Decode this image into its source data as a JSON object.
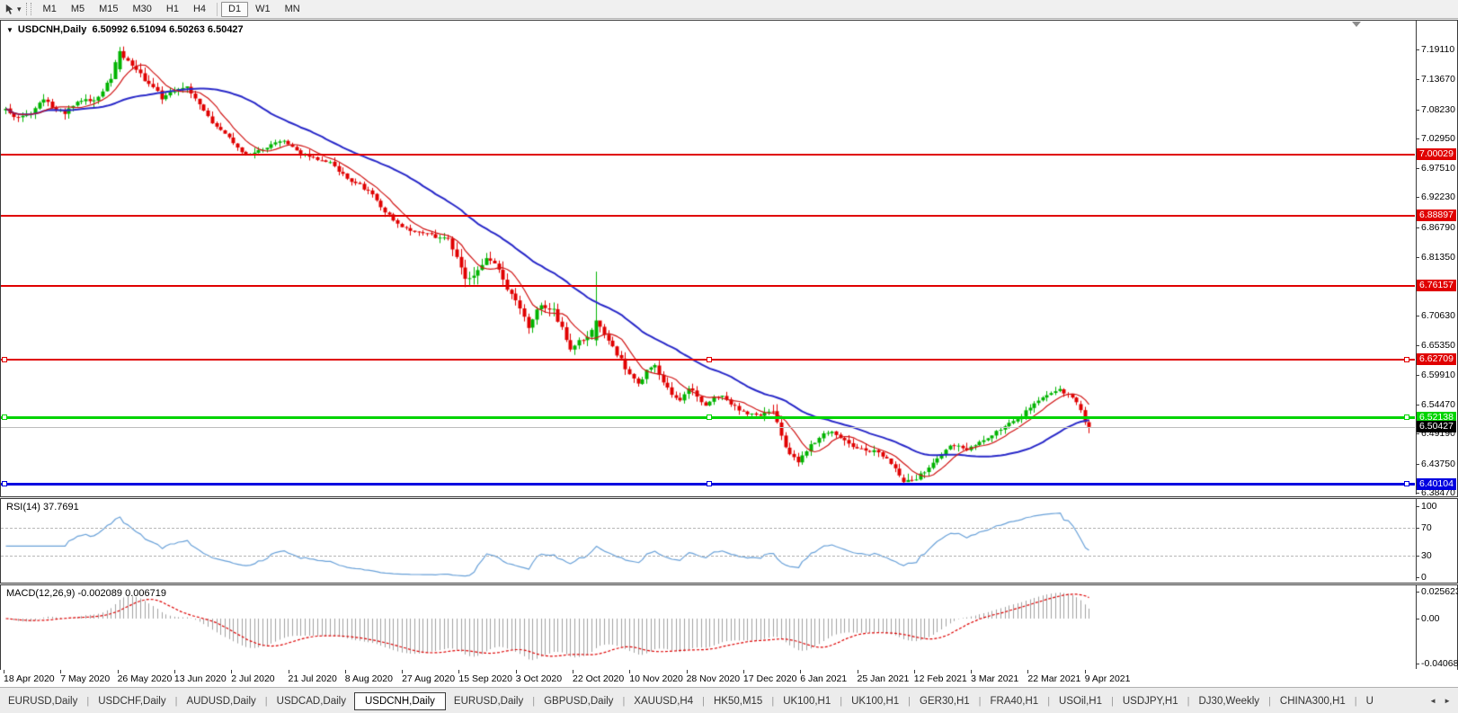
{
  "toolbar": {
    "timeframes": [
      "M1",
      "M5",
      "M15",
      "M30",
      "H1",
      "H4",
      "D1",
      "W1",
      "MN"
    ],
    "active_timeframe": "D1",
    "cursor_tool_icon": "pointer-cursor",
    "dropdown_icon": "chevron-down"
  },
  "chart": {
    "title_symbol": "USDCNH,Daily",
    "title_quotes": "6.50992 6.51094 6.50263 6.50427",
    "rsi_label": "RSI(14) 37.7691",
    "macd_label": "MACD(12,26,9) -0.002089 0.006719"
  },
  "chart_data": {
    "type": "candlestick",
    "symbol": "USDCNH",
    "timeframe": "Daily",
    "ohlc_current": {
      "open": 6.50992,
      "high": 6.51094,
      "low": 6.50263,
      "close": 6.50427
    },
    "bars": 258,
    "ylim": [
      6.3813,
      7.2434
    ],
    "price_axis_ticks": [
      "7.19110",
      "7.13670",
      "7.08230",
      "7.02950",
      "6.97510",
      "6.92230",
      "6.86790",
      "6.81350",
      "6.70630",
      "6.65350",
      "6.59910",
      "6.54470",
      "6.49190",
      "6.43750",
      "6.38470"
    ],
    "x_labels": [
      "18 Apr 2020",
      "7 May 2020",
      "26 May 2020",
      "13 Jun 2020",
      "2 Jul 2020",
      "21 Jul 2020",
      "8 Aug 2020",
      "27 Aug 2020",
      "15 Sep 2020",
      "3 Oct 2020",
      "22 Oct 2020",
      "10 Nov 2020",
      "28 Nov 2020",
      "17 Dec 2020",
      "6 Jan 2021",
      "25 Jan 2021",
      "12 Feb 2021",
      "3 Mar 2021",
      "22 Mar 2021",
      "9 Apr 2021"
    ],
    "close_waypoints": [
      [
        0,
        7.082
      ],
      [
        3,
        7.066
      ],
      [
        6,
        7.075
      ],
      [
        9,
        7.102
      ],
      [
        11,
        7.085
      ],
      [
        14,
        7.075
      ],
      [
        17,
        7.095
      ],
      [
        22,
        7.103
      ],
      [
        25,
        7.14
      ],
      [
        27,
        7.188
      ],
      [
        29,
        7.168
      ],
      [
        31,
        7.152
      ],
      [
        34,
        7.13
      ],
      [
        37,
        7.103
      ],
      [
        40,
        7.118
      ],
      [
        43,
        7.125
      ],
      [
        46,
        7.09
      ],
      [
        49,
        7.058
      ],
      [
        52,
        7.04
      ],
      [
        55,
        7.014
      ],
      [
        57,
        6.998
      ],
      [
        60,
        7.008
      ],
      [
        63,
        7.018
      ],
      [
        66,
        7.026
      ],
      [
        69,
        7.005
      ],
      [
        73,
        6.993
      ],
      [
        77,
        6.985
      ],
      [
        81,
        6.956
      ],
      [
        84,
        6.945
      ],
      [
        87,
        6.926
      ],
      [
        90,
        6.897
      ],
      [
        93,
        6.874
      ],
      [
        96,
        6.862
      ],
      [
        99,
        6.856
      ],
      [
        102,
        6.85
      ],
      [
        105,
        6.843
      ],
      [
        107,
        6.812
      ],
      [
        109,
        6.776
      ],
      [
        111,
        6.783
      ],
      [
        113,
        6.803
      ],
      [
        115,
        6.812
      ],
      [
        117,
        6.786
      ],
      [
        119,
        6.757
      ],
      [
        121,
        6.733
      ],
      [
        124,
        6.687
      ],
      [
        127,
        6.729
      ],
      [
        130,
        6.716
      ],
      [
        132,
        6.683
      ],
      [
        134,
        6.648
      ],
      [
        137,
        6.664
      ],
      [
        139,
        6.677
      ],
      [
        141,
        6.688
      ],
      [
        143,
        6.661
      ],
      [
        145,
        6.638
      ],
      [
        147,
        6.613
      ],
      [
        150,
        6.581
      ],
      [
        152,
        6.605
      ],
      [
        154,
        6.62
      ],
      [
        156,
        6.586
      ],
      [
        158,
        6.565
      ],
      [
        160,
        6.552
      ],
      [
        162,
        6.576
      ],
      [
        164,
        6.559
      ],
      [
        166,
        6.546
      ],
      [
        168,
        6.556
      ],
      [
        170,
        6.562
      ],
      [
        172,
        6.548
      ],
      [
        174,
        6.536
      ],
      [
        176,
        6.528
      ],
      [
        178,
        6.524
      ],
      [
        180,
        6.53
      ],
      [
        182,
        6.532
      ],
      [
        184,
        6.49
      ],
      [
        186,
        6.452
      ],
      [
        188,
        6.444
      ],
      [
        190,
        6.462
      ],
      [
        192,
        6.479
      ],
      [
        194,
        6.491
      ],
      [
        196,
        6.496
      ],
      [
        198,
        6.483
      ],
      [
        200,
        6.474
      ],
      [
        202,
        6.466
      ],
      [
        204,
        6.459
      ],
      [
        206,
        6.462
      ],
      [
        208,
        6.452
      ],
      [
        210,
        6.438
      ],
      [
        212,
        6.415
      ],
      [
        214,
        6.405
      ],
      [
        216,
        6.412
      ],
      [
        218,
        6.422
      ],
      [
        220,
        6.44
      ],
      [
        222,
        6.455
      ],
      [
        224,
        6.468
      ],
      [
        226,
        6.471
      ],
      [
        228,
        6.464
      ],
      [
        230,
        6.474
      ],
      [
        232,
        6.482
      ],
      [
        234,
        6.49
      ],
      [
        236,
        6.501
      ],
      [
        238,
        6.511
      ],
      [
        240,
        6.521
      ],
      [
        242,
        6.532
      ],
      [
        244,
        6.547
      ],
      [
        246,
        6.559
      ],
      [
        248,
        6.568
      ],
      [
        250,
        6.571
      ],
      [
        252,
        6.562
      ],
      [
        254,
        6.549
      ],
      [
        255,
        6.535
      ],
      [
        256,
        6.513
      ],
      [
        257,
        6.50427
      ]
    ],
    "volatility_waypoints": [
      [
        0,
        1.0
      ],
      [
        25,
        1.3
      ],
      [
        30,
        1.4
      ],
      [
        45,
        1.1
      ],
      [
        60,
        1.0
      ],
      [
        80,
        0.9
      ],
      [
        100,
        1.0
      ],
      [
        106,
        1.6
      ],
      [
        112,
        2.0
      ],
      [
        118,
        1.7
      ],
      [
        124,
        1.4
      ],
      [
        134,
        1.4
      ],
      [
        145,
        1.3
      ],
      [
        155,
        1.3
      ],
      [
        165,
        1.1
      ],
      [
        178,
        0.9
      ],
      [
        185,
        1.7
      ],
      [
        192,
        1.2
      ],
      [
        205,
        1.0
      ],
      [
        213,
        1.1
      ],
      [
        222,
        1.3
      ],
      [
        232,
        1.0
      ],
      [
        245,
        1.0
      ],
      [
        252,
        0.9
      ],
      [
        257,
        0.8
      ]
    ],
    "bar_overrides": [
      {
        "i": 27,
        "o": 7.155,
        "h": 7.1955,
        "l": 7.15,
        "c": 7.188
      },
      {
        "i": 140,
        "o": 6.662,
        "h": 6.787,
        "l": 6.652,
        "c": 6.698
      },
      {
        "i": 213,
        "o": 6.412,
        "h": 6.418,
        "l": 6.4,
        "c": 6.404
      },
      {
        "i": 255,
        "o": 6.546,
        "h": 6.552,
        "l": 6.53,
        "c": 6.535
      },
      {
        "i": 256,
        "o": 6.535,
        "h": 6.541,
        "l": 6.508,
        "c": 6.513
      },
      {
        "i": 257,
        "o": 6.513,
        "h": 6.518,
        "l": 6.493,
        "c": 6.50427
      }
    ],
    "horizontal_lines": [
      {
        "label": "7.00029",
        "price": 7.00029,
        "color": "#e00000",
        "width": 2,
        "selected": false
      },
      {
        "label": "6.88897",
        "price": 6.88897,
        "color": "#e00000",
        "width": 2,
        "selected": false
      },
      {
        "label": "6.76157",
        "price": 6.76157,
        "color": "#e00000",
        "width": 2,
        "selected": false
      },
      {
        "label": "6.62709",
        "price": 6.62709,
        "color": "#e00000",
        "width": 2,
        "selected": true
      },
      {
        "label": "6.52138",
        "price": 6.52138,
        "color": "#00d400",
        "width": 3,
        "selected": true
      },
      {
        "label": "6.40104",
        "price": 6.40104,
        "color": "#0000e0",
        "width": 3,
        "selected": true
      }
    ],
    "current_price_line": {
      "label": "6.50427",
      "price": 6.50427,
      "line_color": "#bcbcbc",
      "label_bg": "#000000"
    },
    "moving_averages": [
      {
        "period": 34,
        "color": "#2828c8",
        "width": 2
      },
      {
        "period": 8,
        "color": "#d01414",
        "width": 1.2
      }
    ],
    "candle_colors": {
      "bull": "#00b400",
      "bear": "#e00000"
    },
    "rsi": {
      "period": 14,
      "value": 37.7691,
      "color": "#68a0d8",
      "axis_ticks": [
        "100",
        "70",
        "30",
        "0"
      ],
      "axis_values": [
        100,
        70,
        30,
        0
      ],
      "dashed_levels": [
        70,
        30
      ]
    },
    "macd": {
      "fast": 12,
      "slow": 26,
      "signal": 9,
      "value": -0.002089,
      "signal_value": 0.006719,
      "axis_ticks": [
        "0.025623",
        "0.00",
        "-0.040687"
      ],
      "histogram_color": "#a0a0a0",
      "signal_color": "#dd0000"
    }
  },
  "tabs": {
    "items": [
      "EURUSD,Daily",
      "USDCHF,Daily",
      "AUDUSD,Daily",
      "USDCAD,Daily",
      "USDCNH,Daily",
      "EURUSD,Daily",
      "GBPUSD,Daily",
      "XAUUSD,H4",
      "HK50,M15",
      "UK100,H1",
      "UK100,H1",
      "GER30,H1",
      "FRA40,H1",
      "USOil,H1",
      "USDJPY,H1",
      "DJ30,Weekly",
      "CHINA300,H1",
      "U"
    ],
    "active": "USDCNH,Daily",
    "scroll_left_icon": "◄",
    "scroll_right_icon": "►"
  }
}
